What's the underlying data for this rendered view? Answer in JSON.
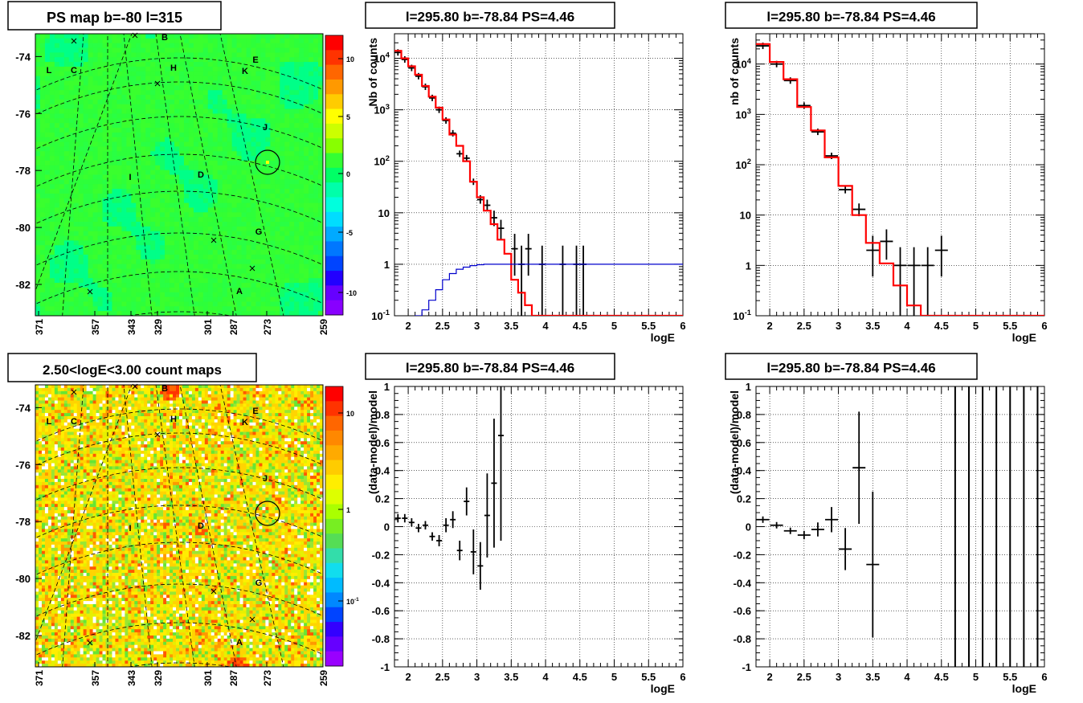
{
  "chart_data": [
    {
      "type": "heatmap",
      "title": "PS map b=-80 l=315",
      "ytick_labels": [
        "-74",
        "-76",
        "-78",
        "-80",
        "-82"
      ],
      "yticks": [
        -74,
        -76,
        -78,
        -80,
        -82
      ],
      "ylim": [
        -83.1,
        -73.2
      ],
      "xtick_labels": [
        "371",
        "357",
        "343",
        "329",
        "301",
        "287",
        "273",
        "259"
      ],
      "colorbar": {
        "min": -12,
        "max": 12,
        "tick_labels": [
          "10",
          "5",
          "0",
          "-5",
          "-10"
        ],
        "ticks": [
          10,
          5,
          0,
          -5,
          -10
        ]
      },
      "source_labels": [
        "A",
        "B",
        "C",
        "D",
        "E",
        "G",
        "H",
        "I",
        "J",
        "K",
        "L"
      ],
      "colors": {
        "dominant": "#33ff33",
        "highlight": "#00ff88"
      }
    },
    {
      "type": "line",
      "title": "l=295.80 b=-78.84 PS=4.46",
      "xlabel": "logE",
      "ylabel": "Nb of counts",
      "xlim": [
        1.8,
        6
      ],
      "ylim": [
        0.1,
        30000
      ],
      "yscale": "log",
      "xtick_labels": [
        "2",
        "2.5",
        "3",
        "3.5",
        "4",
        "4.5",
        "5",
        "5.5",
        "6"
      ],
      "xticks": [
        2,
        2.5,
        3,
        3.5,
        4,
        4.5,
        5,
        5.5,
        6
      ],
      "ytick_labels": [
        "10^-1",
        "1",
        "10",
        "10^2",
        "10^3",
        "10^4"
      ],
      "yticks": [
        0.1,
        1,
        10,
        100,
        1000,
        10000
      ],
      "series": [
        {
          "style": "data",
          "color": "#000000",
          "x": [
            1.85,
            1.95,
            2.05,
            2.15,
            2.25,
            2.35,
            2.45,
            2.55,
            2.65,
            2.75,
            2.85,
            2.95,
            3.05,
            3.15,
            3.25,
            3.35,
            3.55,
            3.75
          ],
          "y": [
            13000,
            9500,
            6500,
            4500,
            2800,
            1700,
            1000,
            620,
            350,
            140,
            115,
            40,
            18,
            14,
            8,
            5,
            2,
            2
          ],
          "err_lo": [
            0,
            0,
            0,
            0,
            0,
            0,
            0,
            0,
            0,
            0,
            0,
            0,
            3,
            3,
            2.5,
            2,
            1.4,
            1.4
          ],
          "err_hi": [
            0,
            0,
            0,
            0,
            0,
            0,
            0,
            0,
            0,
            0,
            0,
            0,
            4,
            4,
            3,
            2.3,
            1.9,
            1.9
          ]
        },
        {
          "style": "data",
          "color": "#000000",
          "x": [
            3.65,
            3.95,
            4.25,
            4.45,
            4.55
          ],
          "y": [
            1,
            1,
            1,
            1,
            1
          ],
          "err_lo": [
            0.9,
            0.9,
            0.9,
            0.9,
            0.9
          ],
          "err_hi": [
            1.3,
            1.3,
            1.3,
            1.3,
            1.3
          ]
        },
        {
          "style": "step",
          "color": "#ff0000",
          "edges": [
            1.8,
            1.9,
            2.0,
            2.1,
            2.2,
            2.3,
            2.4,
            2.5,
            2.6,
            2.7,
            2.8,
            2.9,
            3.0,
            3.1,
            3.2,
            3.3,
            3.4,
            3.5,
            3.6,
            3.7,
            3.8,
            6.0
          ],
          "y": [
            14000,
            10000,
            7000,
            4800,
            2900,
            1800,
            1100,
            650,
            330,
            200,
            100,
            40,
            20,
            11,
            6,
            3,
            1.6,
            0.5,
            0.28,
            0.16,
            0.1
          ]
        },
        {
          "style": "step",
          "color": "#0000cc",
          "edges": [
            1.8,
            2.1,
            2.2,
            2.3,
            2.4,
            2.5,
            2.6,
            2.7,
            2.8,
            2.9,
            3.0,
            3.1,
            3.2,
            6.0
          ],
          "y": [
            0.08,
            0.1,
            0.13,
            0.2,
            0.32,
            0.5,
            0.66,
            0.8,
            0.88,
            0.94,
            0.98,
            1,
            1
          ]
        }
      ]
    },
    {
      "type": "line",
      "title": "l=295.80 b=-78.84 PS=4.46",
      "xlabel": "logE",
      "ylabel": "nb of counts",
      "xlim": [
        1.8,
        6
      ],
      "ylim": [
        0.1,
        40000
      ],
      "yscale": "log",
      "xtick_labels": [
        "2",
        "2.5",
        "3",
        "3.5",
        "4",
        "4.5",
        "5",
        "5.5",
        "6"
      ],
      "xticks": [
        2,
        2.5,
        3,
        3.5,
        4,
        4.5,
        5,
        5.5,
        6
      ],
      "ytick_labels": [
        "10^-1",
        "1",
        "10",
        "10^2",
        "10^3",
        "10^4"
      ],
      "yticks": [
        0.1,
        1,
        10,
        100,
        1000,
        10000
      ],
      "series": [
        {
          "style": "data",
          "color": "#000000",
          "x": [
            1.9,
            2.1,
            2.3,
            2.5,
            2.7,
            2.9,
            3.1,
            3.3,
            3.5,
            3.7,
            3.9,
            4.1,
            4.3,
            4.5
          ],
          "y": [
            23000,
            10000,
            4700,
            1500,
            450,
            150,
            32,
            13,
            2,
            3,
            1,
            1,
            1,
            2
          ],
          "err_lo": [
            0,
            0,
            0,
            0,
            0,
            0,
            5,
            3.5,
            1.4,
            1.7,
            0.9,
            0.9,
            0.9,
            1.4
          ],
          "err_hi": [
            0,
            0,
            0,
            0,
            0,
            0,
            6,
            4,
            1.9,
            2.2,
            1.3,
            1.3,
            1.3,
            1.9
          ]
        },
        {
          "style": "step",
          "color": "#ff0000",
          "edges": [
            1.8,
            2.0,
            2.2,
            2.4,
            2.6,
            2.8,
            3.0,
            3.2,
            3.4,
            3.6,
            3.8,
            4.0,
            4.2,
            6.0
          ],
          "y": [
            25000,
            11000,
            5000,
            1400,
            480,
            140,
            38,
            10,
            2.8,
            1.1,
            0.4,
            0.16,
            0.1
          ]
        }
      ]
    },
    {
      "type": "heatmap",
      "title": "2.50<logE<3.00 count maps",
      "ytick_labels": [
        "-74",
        "-76",
        "-78",
        "-80",
        "-82"
      ],
      "yticks": [
        -74,
        -76,
        -78,
        -80,
        -82
      ],
      "ylim": [
        -83.1,
        -73.2
      ],
      "xtick_labels": [
        "371",
        "357",
        "343",
        "329",
        "301",
        "287",
        "273",
        "259"
      ],
      "colorbar": {
        "scale": "log",
        "tick_labels": [
          "10",
          "1",
          "10^-1"
        ],
        "ticks": [
          10,
          1,
          0.1
        ]
      },
      "source_labels": [
        "A",
        "B",
        "C",
        "D",
        "E",
        "G",
        "H",
        "I",
        "J",
        "K",
        "L"
      ],
      "colors": {
        "dominant": "#ffd400",
        "hot": "#ff4000",
        "low": "#66e633"
      }
    },
    {
      "type": "scatter",
      "title": "l=295.80 b=-78.84 PS=4.46",
      "xlabel": "logE",
      "ylabel": "(data-model)/model",
      "xlim": [
        1.8,
        6
      ],
      "ylim": [
        -1,
        1
      ],
      "xtick_labels": [
        "2",
        "2.5",
        "3",
        "3.5",
        "4",
        "4.5",
        "5",
        "5.5",
        "6"
      ],
      "xticks": [
        2,
        2.5,
        3,
        3.5,
        4,
        4.5,
        5,
        5.5,
        6
      ],
      "ytick_labels": [
        "1",
        "0.8",
        "0.6",
        "0.4",
        "0.2",
        "0",
        "-0.2",
        "-0.4",
        "-0.6",
        "-0.8",
        "-1"
      ],
      "yticks": [
        1,
        0.8,
        0.6,
        0.4,
        0.2,
        0,
        -0.2,
        -0.4,
        -0.6,
        -0.8,
        -1
      ],
      "series": [
        {
          "style": "data",
          "color": "#000000",
          "x": [
            1.85,
            1.95,
            2.05,
            2.15,
            2.25,
            2.35,
            2.45,
            2.55,
            2.65,
            2.75,
            2.85,
            2.95,
            3.05,
            3.15,
            3.25,
            3.35
          ],
          "y": [
            0.06,
            0.06,
            0.03,
            -0.01,
            0.01,
            -0.07,
            -0.1,
            0.01,
            0.05,
            -0.17,
            0.18,
            -0.18,
            -0.28,
            0.08,
            0.31,
            0.65
          ],
          "err": [
            0.03,
            0.03,
            0.03,
            0.03,
            0.03,
            0.03,
            0.04,
            0.05,
            0.06,
            0.07,
            0.1,
            0.16,
            0.17,
            0.3,
            0.46,
            0.75
          ]
        }
      ]
    },
    {
      "type": "scatter",
      "title": "l=295.80 b=-78.84 PS=4.46",
      "xlabel": "logE",
      "ylabel": "(data-model)/model",
      "xlim": [
        1.8,
        6
      ],
      "ylim": [
        -1,
        1
      ],
      "xtick_labels": [
        "2",
        "2.5",
        "3",
        "3.5",
        "4",
        "4.5",
        "5",
        "5.5",
        "6"
      ],
      "xticks": [
        2,
        2.5,
        3,
        3.5,
        4,
        4.5,
        5,
        5.5,
        6
      ],
      "ytick_labels": [
        "1",
        "0.8",
        "0.6",
        "0.4",
        "0.2",
        "0",
        "-0.2",
        "-0.4",
        "-0.6",
        "-0.8",
        "-1"
      ],
      "yticks": [
        1,
        0.8,
        0.6,
        0.4,
        0.2,
        0,
        -0.2,
        -0.4,
        -0.6,
        -0.8,
        -1
      ],
      "series": [
        {
          "style": "data",
          "color": "#000000",
          "x": [
            1.9,
            2.1,
            2.3,
            2.5,
            2.7,
            2.9,
            3.1,
            3.3,
            3.5
          ],
          "y": [
            0.05,
            0.01,
            -0.03,
            -0.06,
            -0.02,
            0.05,
            -0.16,
            0.42,
            -0.27
          ],
          "err": [
            0.02,
            0.02,
            0.02,
            0.03,
            0.05,
            0.09,
            0.15,
            0.4,
            0.52
          ]
        },
        {
          "style": "vertical-lines",
          "color": "#000000",
          "x": [
            4.7,
            4.9,
            5.1,
            5.3,
            5.5,
            5.7,
            5.9
          ],
          "ymin": -1,
          "ymax": 1
        }
      ]
    }
  ]
}
